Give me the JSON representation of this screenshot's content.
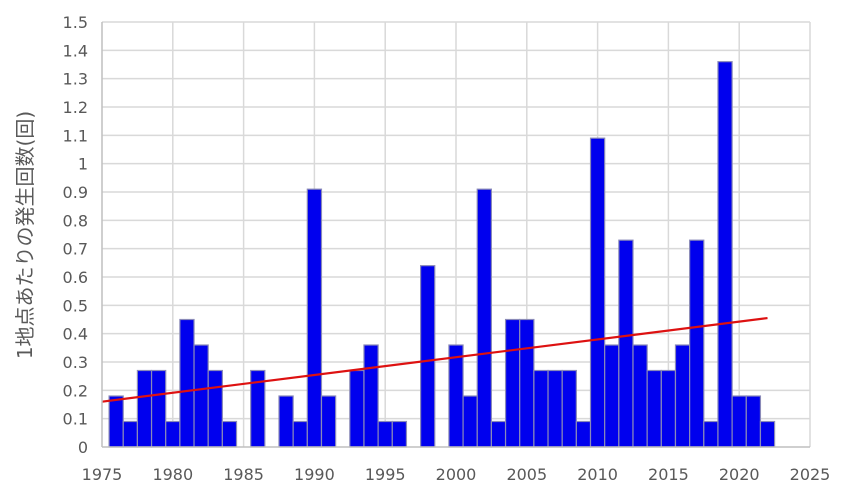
{
  "chart_data": {
    "type": "bar",
    "title": "",
    "xlabel": "",
    "ylabel": "1地点あたりの発生回数(回)",
    "xlim": [
      1975,
      2025
    ],
    "ylim": [
      0,
      1.5
    ],
    "x_ticks": [
      "1975",
      "1980",
      "1985",
      "1990",
      "1995",
      "2000",
      "2005",
      "2010",
      "2015",
      "2020",
      "2025"
    ],
    "y_ticks": [
      "0",
      "0.1",
      "0.2",
      "0.3",
      "0.4",
      "0.5",
      "0.6",
      "0.7",
      "0.8",
      "0.9",
      "1",
      "1.1",
      "1.2",
      "1.3",
      "1.4",
      "1.5"
    ],
    "grid": true,
    "legend": "none",
    "colors": {
      "bar_fill": "#0000ee",
      "bar_edge": "#8a8ab8",
      "trend": "#dd1111",
      "grid": "#d9d9d9",
      "axis": "#bfbfbf"
    },
    "years": [
      1976,
      1977,
      1978,
      1979,
      1980,
      1981,
      1982,
      1983,
      1984,
      1985,
      1986,
      1987,
      1988,
      1989,
      1990,
      1991,
      1992,
      1993,
      1994,
      1995,
      1996,
      1997,
      1998,
      1999,
      2000,
      2001,
      2002,
      2003,
      2004,
      2005,
      2006,
      2007,
      2008,
      2009,
      2010,
      2011,
      2012,
      2013,
      2014,
      2015,
      2016,
      2017,
      2018,
      2019,
      2020,
      2021,
      2022
    ],
    "values": [
      0.18,
      0.09,
      0.27,
      0.27,
      0.09,
      0.45,
      0.36,
      0.27,
      0.09,
      0,
      0.27,
      0,
      0.18,
      0.09,
      0.91,
      0.18,
      0,
      0.27,
      0.36,
      0.09,
      0.09,
      0,
      0.64,
      0,
      0.36,
      0.18,
      0.91,
      0.09,
      0.45,
      0.45,
      0.27,
      0.27,
      0.27,
      0.09,
      1.09,
      0.36,
      0.73,
      0.36,
      0.27,
      0.27,
      0.36,
      0.73,
      0.09,
      1.36,
      0.18,
      0.18,
      0.09
    ],
    "trend": {
      "x": [
        1975,
        2022
      ],
      "y": [
        0.16,
        0.455
      ]
    }
  }
}
